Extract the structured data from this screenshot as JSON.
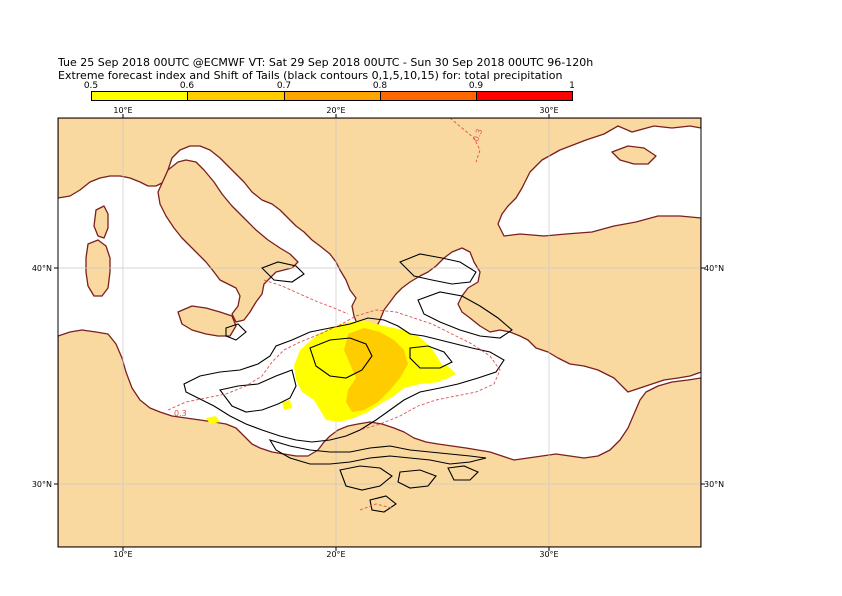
{
  "header": {
    "line1": "Tue 25 Sep 2018 00UTC @ECMWF VT: Sat 29 Sep 2018 00UTC - Sun 30 Sep 2018 00UTC  96-120h",
    "line2": "Extreme forecast index and Shift of Tails (black contours 0,1,5,10,15) for: total precipitation"
  },
  "colorbar": {
    "labels": [
      "0.5",
      "0.6",
      "0.7",
      "0.8",
      "0.9",
      "1"
    ],
    "colors": [
      "#ffff00",
      "#ffcc00",
      "#ffa500",
      "#ff6600",
      "#ff0000"
    ]
  },
  "map": {
    "lon_labels": [
      "10°E",
      "20°E",
      "30°E"
    ],
    "lat_labels": [
      "40°N",
      "30°N"
    ],
    "contour_label": "0.3",
    "colors": {
      "land": "#fad9a0",
      "sea": "#ffffff",
      "coast": "#7a1f1f",
      "sot": "#000000",
      "efi_dash": "#e05050"
    }
  }
}
